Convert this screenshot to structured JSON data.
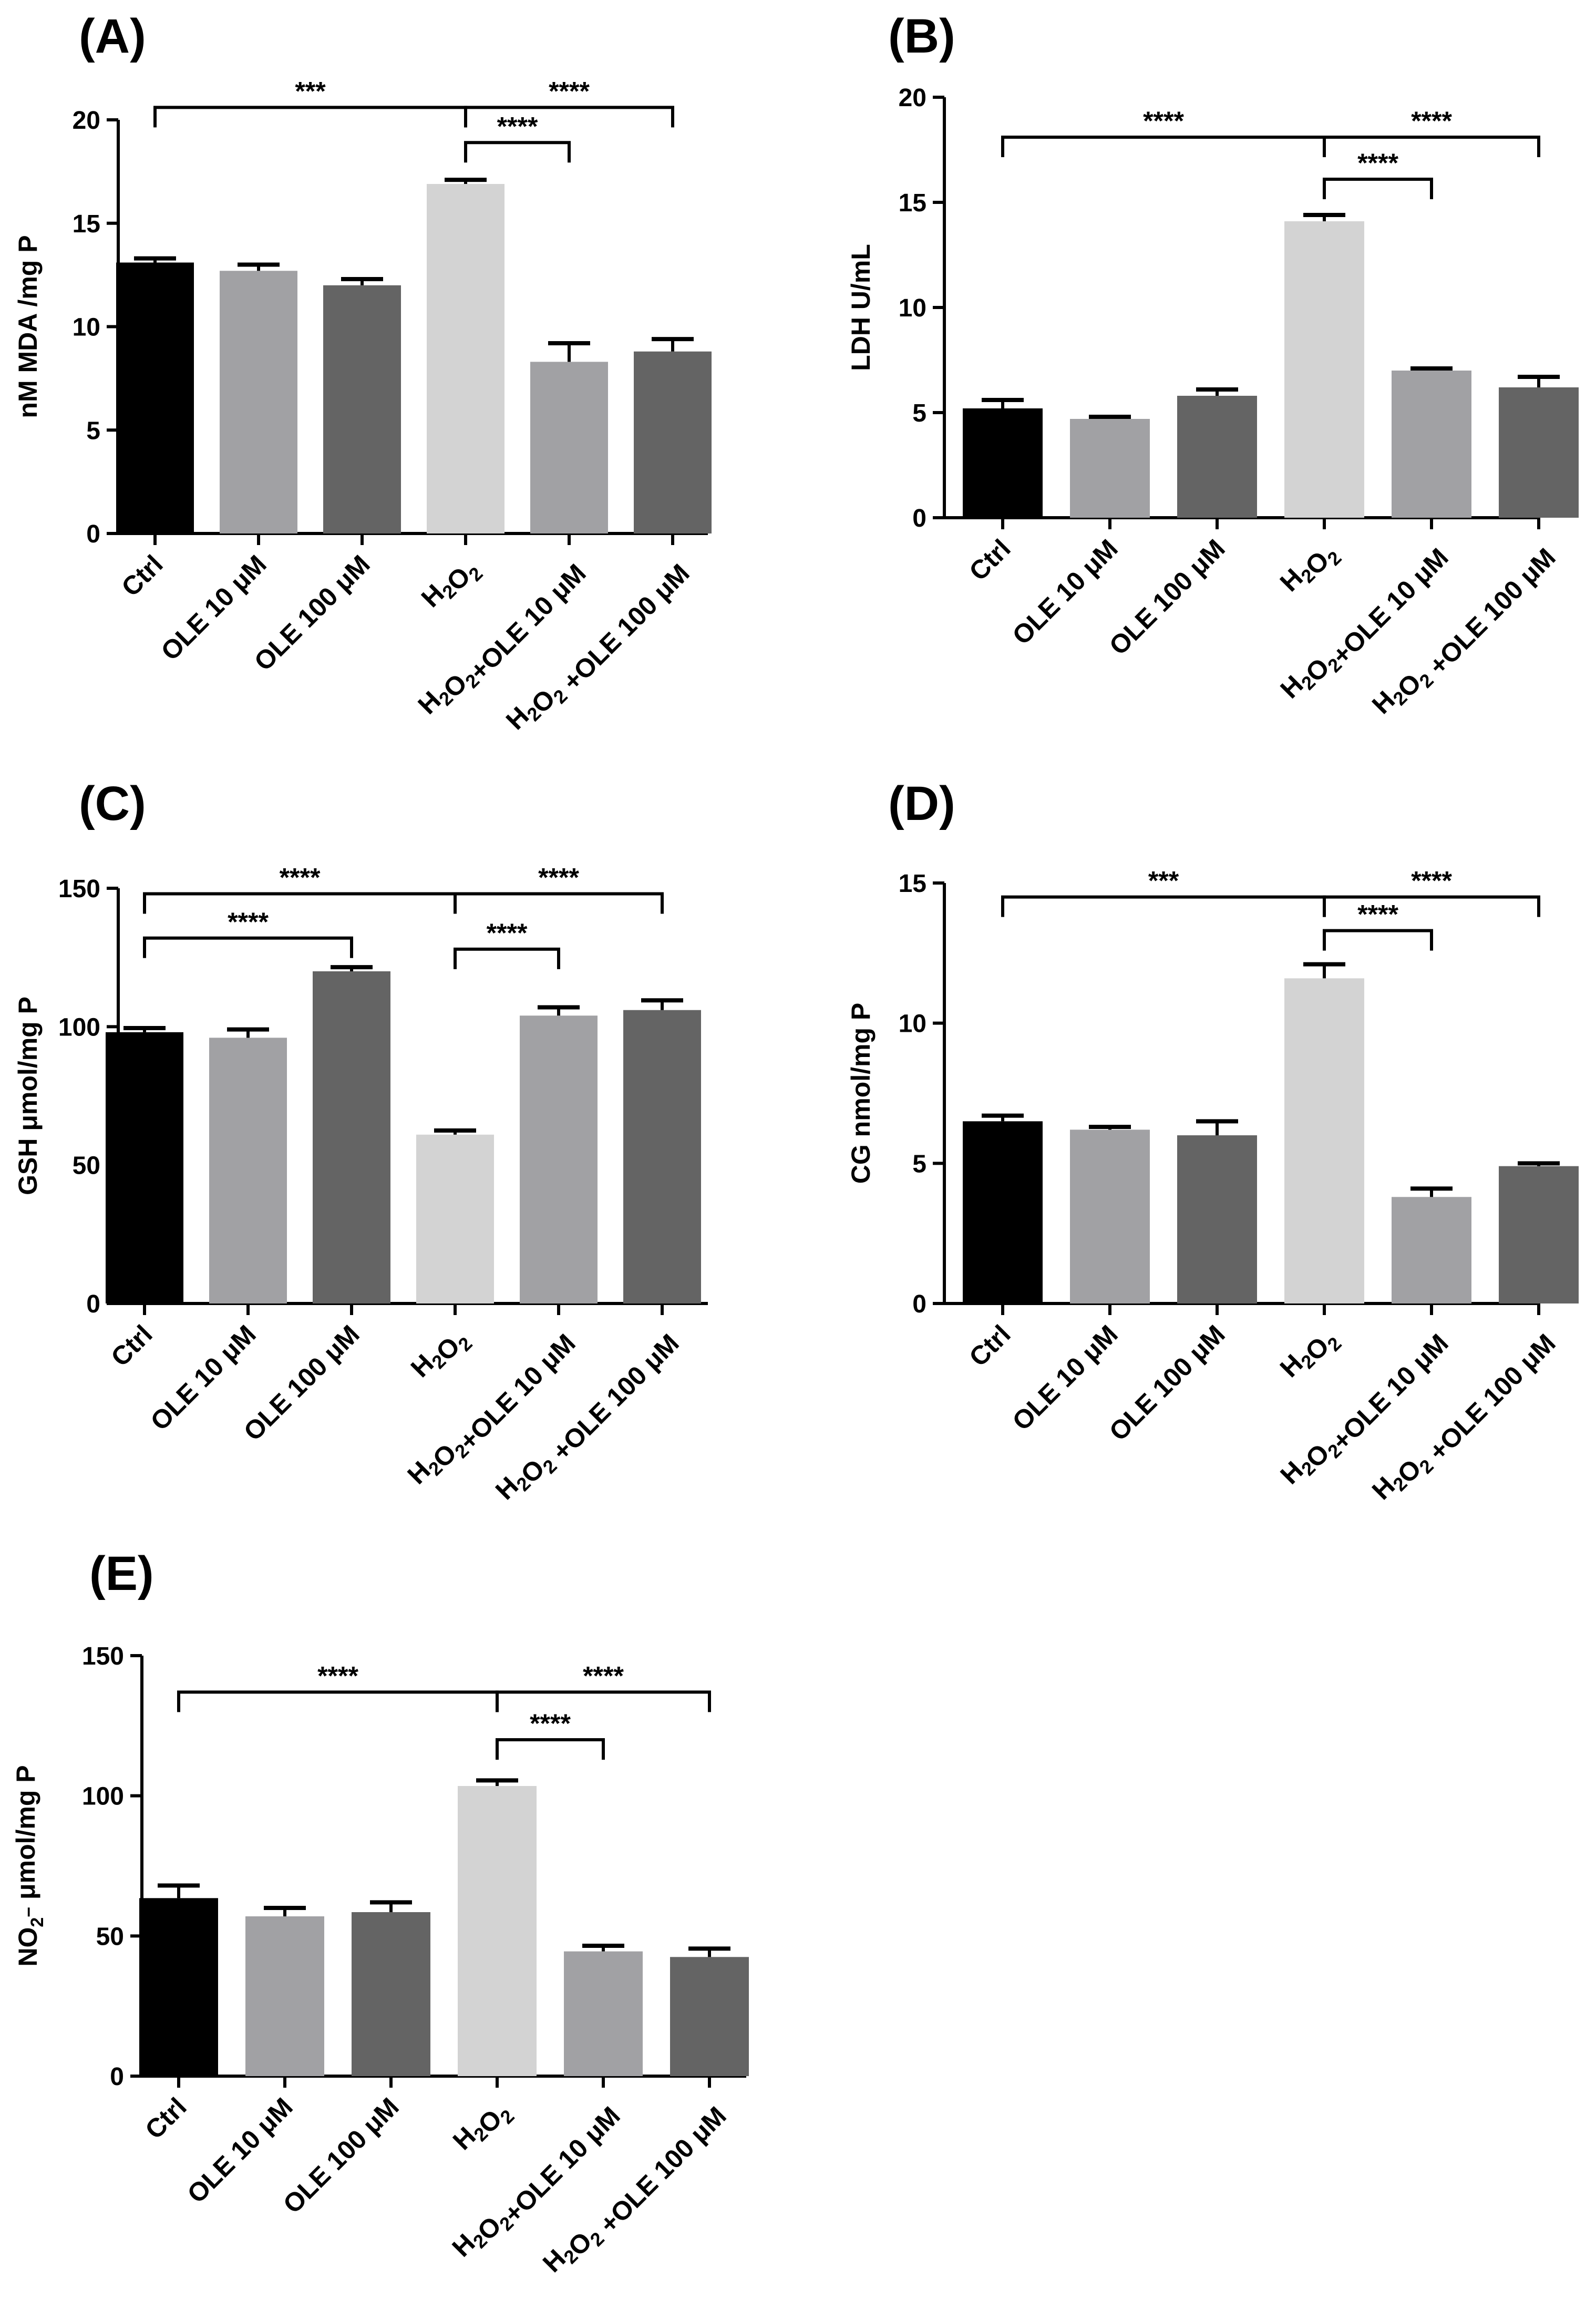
{
  "figure": {
    "panels_count": 5
  },
  "colors": {
    "ctrl": "#000000",
    "ole10": "#a1a1a4",
    "ole100": "#646464",
    "h2o2": "#d3d3d3",
    "axis": "#000000"
  },
  "chart_data": [
    {
      "panel": "(A)",
      "type": "bar",
      "ylabel": "nM MDA /mg P",
      "ylim": [
        0,
        20
      ],
      "yticks": [
        0,
        5,
        10,
        15,
        20
      ],
      "categories": [
        "Ctrl",
        "OLE 10 μM",
        "OLE 100 μM",
        "H₂O₂",
        "H₂O₂+OLE 10 μM",
        "H₂O₂ +OLE 100 μM"
      ],
      "values": [
        13.1,
        12.7,
        12.0,
        16.9,
        8.3,
        8.8
      ],
      "errors": [
        0.2,
        0.3,
        0.3,
        0.2,
        0.9,
        0.6
      ],
      "significance": [
        {
          "from": 0,
          "to": 3,
          "label": "***",
          "level": 20.6
        },
        {
          "from": 3,
          "to": 5,
          "label": "****",
          "level": 20.6
        },
        {
          "from": 3,
          "to": 4,
          "label": "****",
          "level": 18.9
        }
      ]
    },
    {
      "panel": "(B)",
      "type": "bar",
      "ylabel": "LDH U/mL",
      "ylim": [
        0,
        20
      ],
      "yticks": [
        0,
        5,
        10,
        15,
        20
      ],
      "categories": [
        "Ctrl",
        "OLE 10 μM",
        "OLE 100 μM",
        "H₂O₂",
        "H₂O₂+OLE 10 μM",
        "H₂O₂ +OLE 100 μM"
      ],
      "values": [
        5.2,
        4.7,
        5.8,
        14.1,
        7.0,
        6.2
      ],
      "errors": [
        0.4,
        0.1,
        0.3,
        0.3,
        0.1,
        0.5
      ],
      "significance": [
        {
          "from": 0,
          "to": 3,
          "label": "****",
          "level": 18.1
        },
        {
          "from": 3,
          "to": 5,
          "label": "****",
          "level": 18.1
        },
        {
          "from": 3,
          "to": 4,
          "label": "****",
          "level": 16.1
        }
      ]
    },
    {
      "panel": "(C)",
      "type": "bar",
      "ylabel": "GSH μmol/mg P",
      "ylim": [
        0,
        150
      ],
      "yticks": [
        0,
        50,
        100,
        150
      ],
      "categories": [
        "Ctrl",
        "OLE 10 μM",
        "OLE 100 μM",
        "H₂O₂",
        "H₂O₂+OLE 10 μM",
        "H₂O₂ +OLE 100 μM"
      ],
      "values": [
        98,
        96,
        120,
        61,
        104,
        106
      ],
      "errors": [
        1.5,
        3.0,
        1.5,
        1.5,
        3.0,
        3.5
      ],
      "significance": [
        {
          "from": 0,
          "to": 3,
          "label": "****",
          "level": 148
        },
        {
          "from": 3,
          "to": 5,
          "label": "****",
          "level": 148
        },
        {
          "from": 0,
          "to": 2,
          "label": "****",
          "level": 132
        },
        {
          "from": 3,
          "to": 4,
          "label": "****",
          "level": 128
        }
      ]
    },
    {
      "panel": "(D)",
      "type": "bar",
      "ylabel": "CG nmol/mg P",
      "ylim": [
        0,
        15
      ],
      "yticks": [
        0,
        5,
        10,
        15
      ],
      "categories": [
        "Ctrl",
        "OLE 10 μM",
        "OLE 100 μM",
        "H₂O₂",
        "H₂O₂+OLE 10 μM",
        "H₂O₂ +OLE 100 μM"
      ],
      "values": [
        6.5,
        6.2,
        6.0,
        11.6,
        3.8,
        4.9
      ],
      "errors": [
        0.2,
        0.1,
        0.5,
        0.5,
        0.3,
        0.1
      ],
      "significance": [
        {
          "from": 0,
          "to": 3,
          "label": "***",
          "level": 14.5
        },
        {
          "from": 3,
          "to": 5,
          "label": "****",
          "level": 14.5
        },
        {
          "from": 3,
          "to": 4,
          "label": "****",
          "level": 13.3
        }
      ]
    },
    {
      "panel": "(E)",
      "type": "bar",
      "ylabel": "NO₂⁻ μmol/mg P",
      "ylim": [
        0,
        150
      ],
      "yticks": [
        0,
        50,
        100,
        150
      ],
      "categories": [
        "Ctrl",
        "OLE 10 μM",
        "OLE 100 μM",
        "H₂O₂",
        "H₂O₂+OLE 10 μM",
        "H₂O₂ +OLE 100 μM"
      ],
      "values": [
        63.5,
        57,
        58.5,
        103.5,
        44.5,
        42.5
      ],
      "errors": [
        4.5,
        3.0,
        3.5,
        2.0,
        2.0,
        3.0
      ],
      "significance": [
        {
          "from": 0,
          "to": 3,
          "label": "****",
          "level": 137
        },
        {
          "from": 3,
          "to": 5,
          "label": "****",
          "level": 137
        },
        {
          "from": 3,
          "to": 4,
          "label": "****",
          "level": 120
        }
      ]
    }
  ]
}
